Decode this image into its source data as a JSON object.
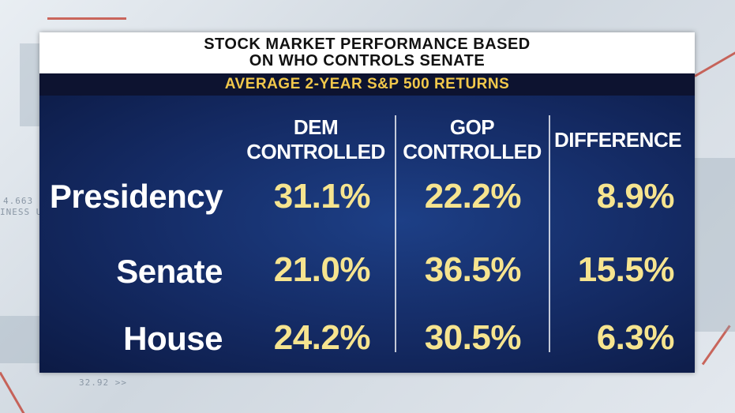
{
  "title": {
    "line1": "STOCK MARKET PERFORMANCE BASED",
    "line2": "ON WHO CONTROLS SENATE"
  },
  "subtitle": "AVERAGE 2-YEAR S&P 500 RETURNS",
  "columns": [
    {
      "line1": "DEM",
      "line2": "CONTROLLED"
    },
    {
      "line1": "GOP",
      "line2": "CONTROLLED"
    },
    {
      "line1": "DIFFERENCE",
      "line2": ""
    }
  ],
  "rows": [
    {
      "label": "Presidency",
      "dem": "31.1%",
      "gop": "22.2%",
      "diff": "8.9%"
    },
    {
      "label": "Senate",
      "dem": "21.0%",
      "gop": "36.5%",
      "diff": "15.5%"
    },
    {
      "label": "House",
      "dem": "24.2%",
      "gop": "30.5%",
      "diff": "6.3%"
    }
  ],
  "background": {
    "ticker1": "4.663",
    "ticker2": "INESS U",
    "ticker3": "32.92 >>"
  },
  "colors": {
    "title_bg": "#ffffff",
    "subtitle_bg": "#0d1330",
    "subtitle_text": "#f2c84b",
    "table_bg": "#142a63",
    "value_text": "#f6e48f",
    "accent_red": "#c0392b"
  }
}
